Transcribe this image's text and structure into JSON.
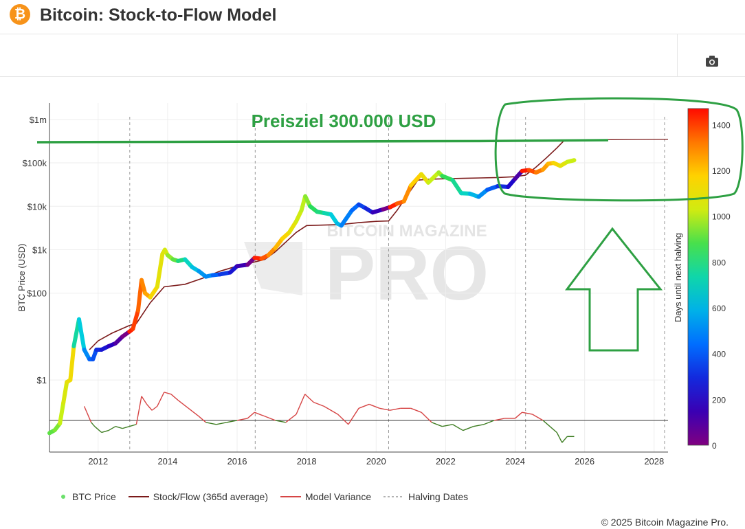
{
  "header": {
    "title": "Bitcoin: Stock-to-Flow Model",
    "logo_symbol": "₿"
  },
  "toolbar": {
    "camera_icon": "camera-icon"
  },
  "chart_data": {
    "type": "scatter",
    "title": "",
    "xlabel": "",
    "ylabel": "BTC Price (USD)",
    "y_scale": "log",
    "x_range": [
      2010.6,
      2028.4
    ],
    "y_ticks": [
      {
        "label": "$1m",
        "value": 1000000
      },
      {
        "label": "$100k",
        "value": 100000
      },
      {
        "label": "$10k",
        "value": 10000
      },
      {
        "label": "$1k",
        "value": 1000
      },
      {
        "label": "$100",
        "value": 100
      },
      {
        "label": "$1",
        "value": 1
      }
    ],
    "x_ticks": [
      "2012",
      "2014",
      "2016",
      "2018",
      "2020",
      "2022",
      "2024",
      "2026",
      "2028"
    ],
    "x_tick_values": [
      2012,
      2014,
      2016,
      2018,
      2020,
      2022,
      2024,
      2026,
      2028
    ],
    "halving_dates": [
      2012.91,
      2016.52,
      2020.36,
      2024.3,
      2028.3
    ],
    "colorbar": {
      "label": "Days until next halving",
      "ticks": [
        0,
        200,
        400,
        600,
        800,
        1000,
        1200,
        1400
      ],
      "max": 1470
    },
    "btc_price": {
      "name": "BTC Price",
      "x": [
        2010.6,
        2010.75,
        2010.9,
        2011.0,
        2011.1,
        2011.2,
        2011.3,
        2011.45,
        2011.6,
        2011.75,
        2011.85,
        2011.95,
        2012.1,
        2012.3,
        2012.5,
        2012.7,
        2012.9,
        2013.0,
        2013.15,
        2013.25,
        2013.35,
        2013.5,
        2013.7,
        2013.85,
        2013.92,
        2014.0,
        2014.15,
        2014.3,
        2014.5,
        2014.7,
        2014.9,
        2015.1,
        2015.3,
        2015.5,
        2015.8,
        2016.0,
        2016.3,
        2016.5,
        2016.7,
        2016.9,
        2017.1,
        2017.3,
        2017.5,
        2017.7,
        2017.85,
        2017.96,
        2018.1,
        2018.3,
        2018.5,
        2018.7,
        2018.88,
        2019.0,
        2019.3,
        2019.5,
        2019.7,
        2019.9,
        2020.2,
        2020.4,
        2020.6,
        2020.8,
        2021.0,
        2021.3,
        2021.5,
        2021.8,
        2021.9,
        2022.2,
        2022.45,
        2022.7,
        2022.95,
        2023.2,
        2023.5,
        2023.8,
        2024.0,
        2024.2,
        2024.4,
        2024.6,
        2024.8,
        2024.95,
        2025.1,
        2025.3,
        2025.5,
        2025.7
      ],
      "y": [
        0.06,
        0.07,
        0.1,
        0.3,
        0.9,
        1.0,
        6,
        25,
        5,
        3,
        3,
        5,
        5,
        6,
        7,
        10,
        13,
        15,
        40,
        200,
        100,
        80,
        140,
        800,
        1000,
        750,
        600,
        550,
        600,
        400,
        320,
        240,
        260,
        270,
        300,
        420,
        450,
        650,
        620,
        750,
        1100,
        1800,
        2500,
        4500,
        8000,
        17000,
        10000,
        7500,
        7000,
        6500,
        4000,
        3600,
        8000,
        11000,
        9000,
        7200,
        8500,
        9500,
        11500,
        13000,
        30000,
        55000,
        35000,
        60000,
        50000,
        40000,
        20000,
        19500,
        16500,
        24000,
        29000,
        28000,
        43000,
        65000,
        68000,
        60000,
        70000,
        95000,
        100000,
        85000,
        105000,
        115000
      ],
      "color_days": [
        870,
        900,
        930,
        1000,
        1050,
        1100,
        1130,
        750,
        650,
        500,
        420,
        380,
        300,
        250,
        180,
        100,
        20,
        1440,
        1400,
        1350,
        1300,
        1250,
        1150,
        1090,
        1070,
        1040,
        950,
        900,
        800,
        700,
        620,
        530,
        500,
        420,
        330,
        250,
        140,
        20,
        1440,
        1370,
        1290,
        1220,
        1160,
        1090,
        1030,
        990,
        940,
        850,
        800,
        730,
        650,
        600,
        480,
        430,
        350,
        280,
        160,
        20,
        1440,
        1360,
        1290,
        1180,
        1110,
        1000,
        960,
        860,
        770,
        700,
        600,
        510,
        400,
        300,
        220,
        110,
        1450,
        1380,
        1320,
        1260,
        1220,
        1150,
        1080,
        1010
      ]
    },
    "stock_flow": {
      "name": "Stock/Flow (365d average)",
      "x": [
        2011.75,
        2012.0,
        2012.4,
        2012.9,
        2013.1,
        2013.5,
        2013.9,
        2014.5,
        2015.0,
        2015.5,
        2016.0,
        2016.5,
        2016.8,
        2017.1,
        2017.4,
        2017.7,
        2018.0,
        2018.5,
        2019.0,
        2019.5,
        2020.0,
        2020.36,
        2020.6,
        2020.9,
        2021.2,
        2021.5,
        2022.0,
        2022.5,
        2023.0,
        2023.5,
        2024.0,
        2024.3,
        2024.6,
        2024.9,
        2025.2,
        2025.4
      ],
      "y": [
        5,
        8,
        12,
        18,
        20,
        60,
        140,
        160,
        220,
        320,
        420,
        520,
        600,
        900,
        1500,
        2500,
        3600,
        3700,
        3800,
        4200,
        4500,
        4600,
        8000,
        18000,
        40000,
        42000,
        43000,
        44000,
        45000,
        46000,
        48000,
        52000,
        80000,
        130000,
        220000,
        320000
      ]
    },
    "stock_flow_extension": {
      "x": [
        2025.4,
        2025.8,
        2026.5,
        2027.5,
        2028.4
      ],
      "y": [
        320000,
        330000,
        340000,
        345000,
        350000
      ]
    },
    "model_variance": {
      "name": "Model Variance",
      "x": [
        2011.6,
        2011.8,
        2011.9,
        2012.1,
        2012.3,
        2012.5,
        2012.7,
        2012.9,
        2013.1,
        2013.25,
        2013.4,
        2013.55,
        2013.7,
        2013.9,
        2014.1,
        2014.3,
        2014.6,
        2014.9,
        2015.1,
        2015.4,
        2015.7,
        2016.0,
        2016.3,
        2016.5,
        2016.8,
        2017.1,
        2017.4,
        2017.7,
        2017.95,
        2018.2,
        2018.5,
        2018.9,
        2019.2,
        2019.5,
        2019.8,
        2020.1,
        2020.4,
        2020.7,
        2021.0,
        2021.3,
        2021.6,
        2021.9,
        2022.2,
        2022.5,
        2022.8,
        2023.1,
        2023.4,
        2023.7,
        2024.0,
        2024.2,
        2024.5,
        2024.8,
        2025.0,
        2025.2,
        2025.35,
        2025.5,
        2025.7
      ],
      "y": [
        0.7,
        -0.1,
        -0.3,
        -0.6,
        -0.5,
        -0.3,
        -0.4,
        -0.3,
        -0.2,
        1.2,
        0.8,
        0.5,
        0.7,
        1.4,
        1.3,
        1.0,
        0.6,
        0.2,
        -0.1,
        -0.2,
        -0.1,
        0.0,
        0.1,
        0.4,
        0.2,
        0.0,
        -0.1,
        0.3,
        1.3,
        0.9,
        0.7,
        0.3,
        -0.2,
        0.6,
        0.8,
        0.6,
        0.5,
        0.6,
        0.6,
        0.4,
        -0.1,
        -0.3,
        -0.2,
        -0.5,
        -0.3,
        -0.2,
        0.0,
        0.1,
        0.1,
        0.4,
        0.3,
        0.0,
        -0.3,
        -0.6,
        -1.1,
        -0.8,
        -0.8
      ]
    },
    "variance_baseline": 0,
    "variance_range": [
      -1.3,
      1.6
    ],
    "annotations": [
      {
        "text": "Preisziel 300.000 USD"
      }
    ]
  },
  "watermark": {
    "line1": "BITCOIN MAGAZINE",
    "line2": "PRO"
  },
  "legend": {
    "items": [
      {
        "label": "BTC Price"
      },
      {
        "label": "Stock/Flow (365d average)"
      },
      {
        "label": "Model Variance"
      },
      {
        "label": "Halving Dates"
      }
    ]
  },
  "footer": {
    "copyright": "© 2025 Bitcoin Magazine Pro."
  },
  "colors": {
    "stock_flow": "#7b1a1a",
    "variance_red": "#d64545",
    "variance_green": "#3e7d22",
    "annotation_green": "#2ea043",
    "grid": "#eeeeee",
    "halving": "#999999"
  }
}
